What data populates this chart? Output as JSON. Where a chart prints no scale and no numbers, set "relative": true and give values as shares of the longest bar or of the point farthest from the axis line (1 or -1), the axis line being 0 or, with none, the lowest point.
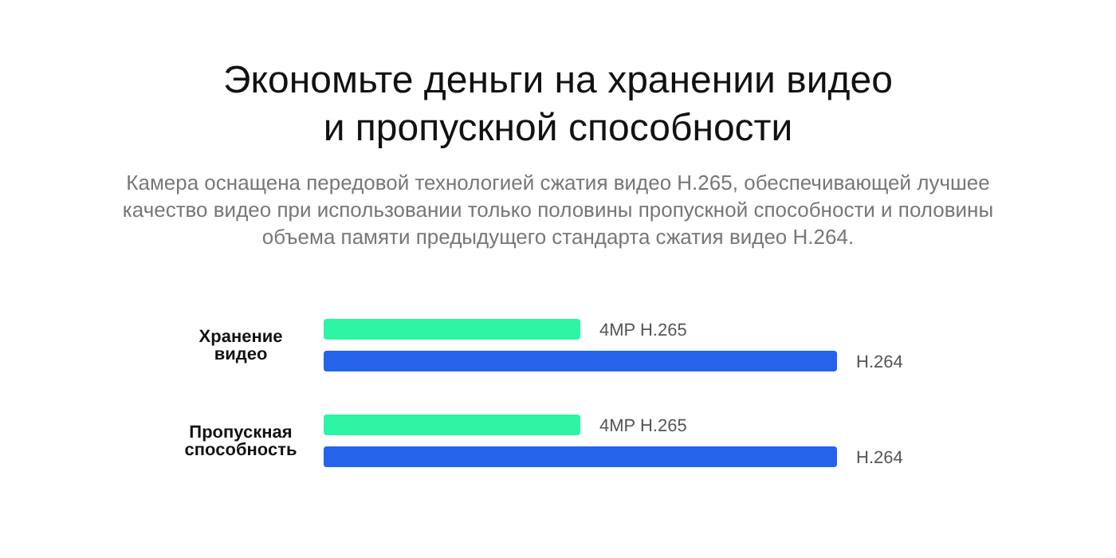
{
  "chart_data": {
    "type": "bar",
    "orientation": "horizontal",
    "relative": true,
    "title": "Экономьте деньги на хранении видео и пропускной способности",
    "subtitle": "Камера оснащена передовой технологией сжатия видео H.265, обеспечивающей лучшее качество видео при использовании только половины пропускной способности и половины объема памяти предыдущего стандарта сжатия видео H.264.",
    "categories": [
      "Хранение видео",
      "Пропускная способность"
    ],
    "series": [
      {
        "name": "4MP H.265",
        "color": "#2ef5a4",
        "values": [
          0.5,
          0.5
        ]
      },
      {
        "name": "H.264",
        "color": "#2563eb",
        "values": [
          1,
          1
        ]
      }
    ],
    "legend": false,
    "grid": false
  }
}
